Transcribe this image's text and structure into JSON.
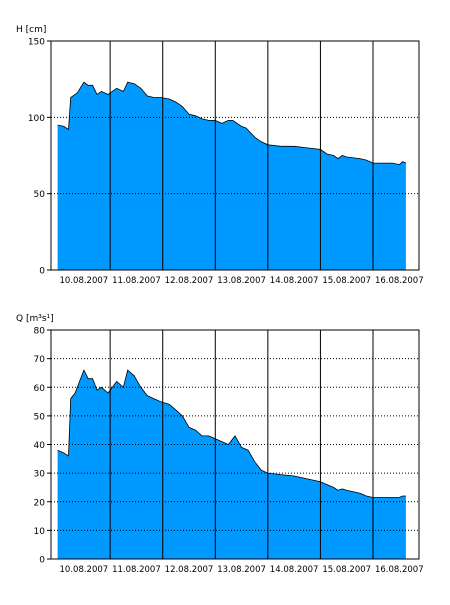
{
  "chart_data": [
    {
      "type": "area",
      "ylabel": "H [cm]",
      "ylim": [
        0,
        150
      ],
      "yticks": [
        0,
        50,
        100,
        150
      ],
      "xlim": [
        "09.08.2007 21:00",
        "16.08.2007 21:00"
      ],
      "date_labels": [
        "10.08.2007",
        "11.08.2007",
        "12.08.2007",
        "13.08.2007",
        "14.08.2007",
        "15.08.2007",
        "16.08.2007"
      ],
      "fill_color": "#0099ff",
      "grid": "dotted horizontal, solid vertical at day boundaries",
      "x": [
        "10.08.2007 00:00",
        "10.08.2007 03:00",
        "10.08.2007 05:00",
        "10.08.2007 06:00",
        "10.08.2007 09:00",
        "10.08.2007 12:00",
        "10.08.2007 14:00",
        "10.08.2007 16:00",
        "10.08.2007 18:00",
        "10.08.2007 20:00",
        "10.08.2007 23:00",
        "11.08.2007 03:00",
        "11.08.2007 06:00",
        "11.08.2007 08:00",
        "11.08.2007 11:00",
        "11.08.2007 14:00",
        "11.08.2007 17:00",
        "11.08.2007 20:00",
        "11.08.2007 23:00",
        "12.08.2007 03:00",
        "12.08.2007 06:00",
        "12.08.2007 09:00",
        "12.08.2007 12:00",
        "12.08.2007 15:00",
        "12.08.2007 18:00",
        "12.08.2007 21:00",
        "13.08.2007 00:00",
        "13.08.2007 03:00",
        "13.08.2007 06:00",
        "13.08.2007 08:00",
        "13.08.2007 12:00",
        "13.08.2007 14:00",
        "13.08.2007 18:00",
        "13.08.2007 21:00",
        "14.08.2007 00:00",
        "14.08.2007 06:00",
        "14.08.2007 12:00",
        "14.08.2007 18:00",
        "15.08.2007 00:00",
        "15.08.2007 03:00",
        "15.08.2007 06:00",
        "15.08.2007 08:00",
        "15.08.2007 10:00",
        "15.08.2007 12:00",
        "15.08.2007 18:00",
        "15.08.2007 21:00",
        "16.08.2007 00:00",
        "16.08.2007 06:00",
        "16.08.2007 09:00",
        "16.08.2007 12:00",
        "16.08.2007 13:30",
        "16.08.2007 15:00"
      ],
      "values": [
        95,
        94,
        92,
        113,
        116,
        123,
        121,
        121,
        115,
        117,
        115,
        119,
        117,
        123,
        122,
        119,
        114,
        113,
        113,
        112,
        110,
        107,
        102,
        101,
        99,
        98,
        98,
        96,
        98,
        98,
        94,
        93,
        87,
        84,
        82,
        81,
        81,
        80,
        79,
        76,
        75,
        73,
        75,
        74,
        73,
        72,
        70,
        70,
        70,
        69,
        71,
        70
      ]
    },
    {
      "type": "area",
      "ylabel": "Q [m³s¹]",
      "ylim": [
        0,
        80
      ],
      "yticks": [
        0,
        10,
        20,
        30,
        40,
        50,
        60,
        70,
        80
      ],
      "xlim": [
        "09.08.2007 21:00",
        "16.08.2007 21:00"
      ],
      "date_labels": [
        "10.08.2007",
        "11.08.2007",
        "12.08.2007",
        "13.08.2007",
        "14.08.2007",
        "15.08.2007",
        "16.08.2007"
      ],
      "fill_color": "#0099ff",
      "grid": "dotted horizontal, solid vertical at day boundaries",
      "x": [
        "10.08.2007 00:00",
        "10.08.2007 03:00",
        "10.08.2007 05:00",
        "10.08.2007 06:00",
        "10.08.2007 08:00",
        "10.08.2007 12:00",
        "10.08.2007 14:00",
        "10.08.2007 16:00",
        "10.08.2007 18:00",
        "10.08.2007 20:00",
        "10.08.2007 23:00",
        "11.08.2007 03:00",
        "11.08.2007 06:00",
        "11.08.2007 08:00",
        "11.08.2007 11:00",
        "11.08.2007 14:00",
        "11.08.2007 17:00",
        "11.08.2007 20:00",
        "11.08.2007 23:00",
        "12.08.2007 03:00",
        "12.08.2007 06:00",
        "12.08.2007 09:00",
        "12.08.2007 12:00",
        "12.08.2007 15:00",
        "12.08.2007 18:00",
        "12.08.2007 21:00",
        "13.08.2007 00:00",
        "13.08.2007 03:00",
        "13.08.2007 06:00",
        "13.08.2007 09:00",
        "13.08.2007 12:00",
        "13.08.2007 15:00",
        "13.08.2007 18:00",
        "13.08.2007 21:00",
        "14.08.2007 00:00",
        "14.08.2007 06:00",
        "14.08.2007 12:00",
        "14.08.2007 18:00",
        "15.08.2007 00:00",
        "15.08.2007 03:00",
        "15.08.2007 06:00",
        "15.08.2007 08:00",
        "15.08.2007 10:00",
        "15.08.2007 12:00",
        "15.08.2007 18:00",
        "15.08.2007 21:00",
        "16.08.2007 00:00",
        "16.08.2007 06:00",
        "16.08.2007 09:00",
        "16.08.2007 12:00",
        "16.08.2007 13:30",
        "16.08.2007 15:00"
      ],
      "values": [
        38,
        37,
        36,
        56,
        58,
        66,
        63,
        63,
        59,
        60,
        58,
        62,
        60,
        66,
        64,
        60,
        57,
        56,
        55,
        54,
        52,
        50,
        46,
        45,
        43,
        43,
        42,
        41,
        40,
        43,
        39,
        38,
        34,
        31,
        30,
        29.5,
        29,
        28,
        27,
        26,
        25,
        24,
        24.5,
        24,
        23,
        22,
        21.5,
        21.5,
        21.5,
        21.5,
        22,
        22
      ]
    }
  ]
}
